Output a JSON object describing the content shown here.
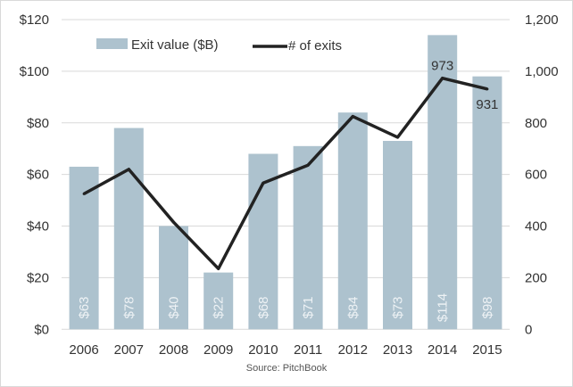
{
  "chart_data": {
    "type": "bar+line",
    "source": "Source: PitchBook",
    "categories": [
      "2006",
      "2007",
      "2008",
      "2009",
      "2010",
      "2011",
      "2012",
      "2013",
      "2014",
      "2015"
    ],
    "series": [
      {
        "name": "Exit value ($B)",
        "type": "bar",
        "axis": "left",
        "color": "#adc2ce",
        "values": [
          63,
          78,
          40,
          22,
          68,
          71,
          84,
          73,
          114,
          98
        ],
        "labels": [
          "$63",
          "$78",
          "$40",
          "$22",
          "$68",
          "$71",
          "$84",
          "$73",
          "$114",
          "$98"
        ]
      },
      {
        "name": "# of exits",
        "type": "line",
        "axis": "right",
        "color": "#222222",
        "values": [
          525,
          620,
          415,
          235,
          567,
          636,
          825,
          744,
          973,
          931
        ],
        "point_labels": {
          "8": "973",
          "9": "931"
        }
      }
    ],
    "left_axis": {
      "ylim": [
        0,
        120
      ],
      "ticks": [
        "$0",
        "$20",
        "$40",
        "$60",
        "$80",
        "$100",
        "$120"
      ]
    },
    "right_axis": {
      "ylim": [
        0,
        1200
      ],
      "ticks": [
        "0",
        "200",
        "400",
        "600",
        "800",
        "1,000",
        "1,200"
      ]
    },
    "grid": true,
    "legend": "top-left"
  }
}
